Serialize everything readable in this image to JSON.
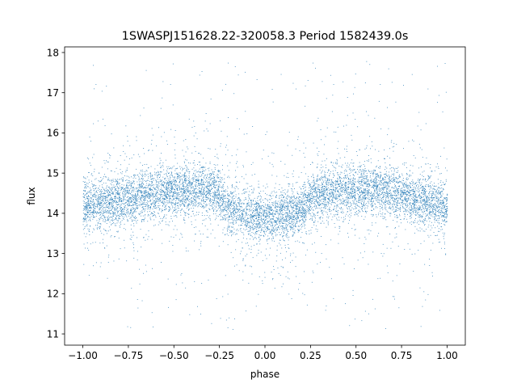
{
  "chart_data": {
    "type": "scatter",
    "title": "1SWASPJ151628.22-320058.3 Period 1582439.0s",
    "xlabel": "phase",
    "ylabel": "flux",
    "xlim": [
      -1.1,
      1.1
    ],
    "ylim": [
      10.72,
      18.14
    ],
    "xticks": [
      -1.0,
      -0.75,
      -0.5,
      -0.25,
      0.0,
      0.25,
      0.5,
      0.75,
      1.0
    ],
    "xtick_labels": [
      "−1.00",
      "−0.75",
      "−0.50",
      "−0.25",
      "0.00",
      "0.25",
      "0.50",
      "0.75",
      "1.00"
    ],
    "yticks": [
      11,
      12,
      13,
      14,
      15,
      16,
      17,
      18
    ],
    "ytick_labels": [
      "11",
      "12",
      "13",
      "14",
      "15",
      "16",
      "17",
      "18"
    ],
    "grid": false,
    "marker_color": "#1f77b4",
    "series": [
      {
        "x_range": [
          -1.0,
          1.0
        ],
        "profile_phase": [
          -1.0,
          -0.9,
          -0.8,
          -0.7,
          -0.6,
          -0.5,
          -0.4,
          -0.3,
          -0.25,
          -0.2,
          -0.1,
          0.0,
          0.1,
          0.2,
          0.25,
          0.3,
          0.4,
          0.5,
          0.6,
          0.7,
          0.8,
          0.9,
          1.0
        ],
        "profile_median_flux": [
          14.2,
          14.25,
          14.3,
          14.4,
          14.5,
          14.55,
          14.6,
          14.6,
          14.5,
          14.1,
          13.95,
          13.9,
          13.95,
          14.1,
          14.35,
          14.45,
          14.55,
          14.6,
          14.6,
          14.55,
          14.4,
          14.3,
          14.2
        ],
        "core_flux_range": [
          12.8,
          15.8
        ],
        "outlier_flux_range": [
          11.1,
          17.8
        ]
      }
    ]
  }
}
